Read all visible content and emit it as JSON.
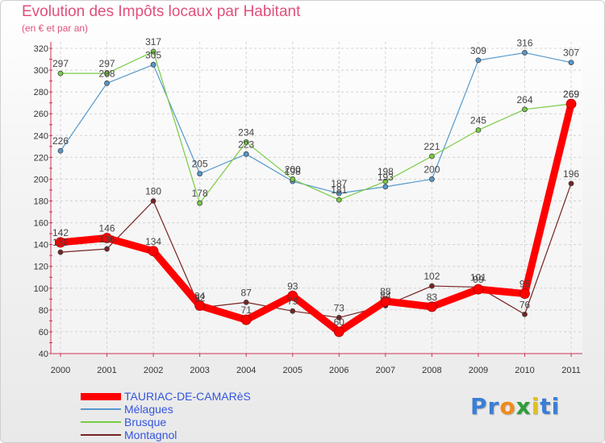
{
  "chart_data": {
    "type": "line",
    "title": "Evolution des Impôts locaux par Habitant",
    "subtitle": "(en € et par an)",
    "xlabel": "",
    "ylabel": "",
    "ylim": [
      40,
      320
    ],
    "yticks": [
      40,
      60,
      80,
      100,
      120,
      140,
      160,
      180,
      200,
      220,
      240,
      260,
      280,
      300,
      320
    ],
    "categories": [
      "2000",
      "2001",
      "2002",
      "2003",
      "2004",
      "2005",
      "2006",
      "2007",
      "2008",
      "2009",
      "2010",
      "2011"
    ],
    "grid": true,
    "legend_position": "bottom-left",
    "series": [
      {
        "name": "TAURIAC-DE-CAMARèS",
        "color": "#ff0000",
        "values": [
          142,
          146,
          134,
          84,
          71,
          93,
          60,
          88,
          83,
          99,
          95,
          269
        ]
      },
      {
        "name": "Mélagues",
        "color": "#5599cc",
        "values": [
          226,
          288,
          305,
          205,
          223,
          198,
          187,
          193,
          200,
          309,
          316,
          307
        ]
      },
      {
        "name": "Brusque",
        "color": "#77cc44",
        "values": [
          297,
          297,
          317,
          178,
          234,
          200,
          181,
          198,
          221,
          245,
          264,
          269
        ]
      },
      {
        "name": "Montagnol",
        "color": "#772222",
        "values": [
          133,
          136,
          180,
          82,
          87,
          79,
          73,
          84,
          102,
          101,
          76,
          196
        ]
      }
    ]
  },
  "brand": {
    "letters": [
      "P",
      "r",
      "o",
      "x",
      "i",
      "t",
      "i"
    ],
    "colors": [
      "#3a7fd5",
      "#3a7fd5",
      "#f08a1c",
      "#2d9e3a",
      "#e0c020",
      "#3a7fd5",
      "#3a7fd5"
    ]
  }
}
